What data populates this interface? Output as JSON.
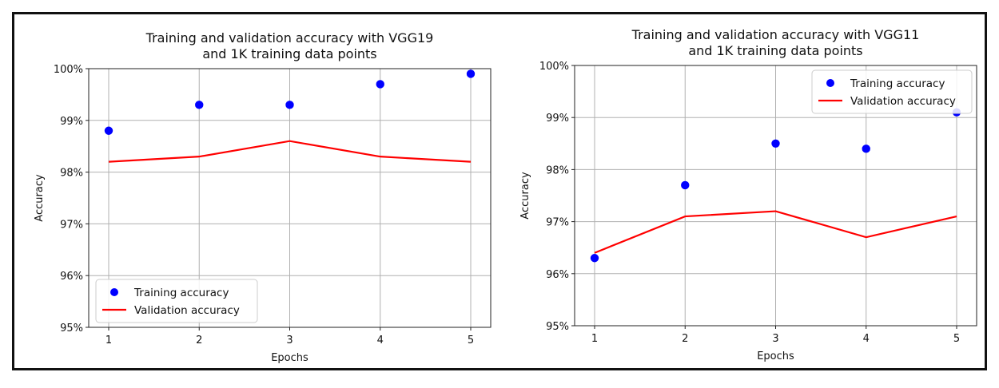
{
  "chart_data": [
    {
      "type": "line",
      "title": "Training and validation accuracy with VGG19\nand 1K training data points",
      "xlabel": "Epochs",
      "ylabel": "Accuracy",
      "x": [
        1,
        2,
        3,
        4,
        5
      ],
      "xticks": [
        "1",
        "2",
        "3",
        "4",
        "5"
      ],
      "ylim": [
        95,
        100
      ],
      "yticks": [
        "95%",
        "96%",
        "97%",
        "98%",
        "99%",
        "100%"
      ],
      "grid": true,
      "legend_position": "lower-left",
      "series": [
        {
          "name": "Training accuracy",
          "style": "scatter",
          "color": "#0000ff",
          "values": [
            98.8,
            99.3,
            99.3,
            99.7,
            99.9
          ]
        },
        {
          "name": "Validation accuracy",
          "style": "line",
          "color": "#ff0000",
          "values": [
            98.2,
            98.3,
            98.6,
            98.3,
            98.2
          ]
        }
      ]
    },
    {
      "type": "line",
      "title": "Training and validation accuracy with VGG11\nand 1K training data points",
      "xlabel": "Epochs",
      "ylabel": "Accuracy",
      "x": [
        1,
        2,
        3,
        4,
        5
      ],
      "xticks": [
        "1",
        "2",
        "3",
        "4",
        "5"
      ],
      "ylim": [
        95,
        100
      ],
      "yticks": [
        "95%",
        "96%",
        "97%",
        "98%",
        "99%",
        "100%"
      ],
      "grid": true,
      "legend_position": "upper-right",
      "series": [
        {
          "name": "Training accuracy",
          "style": "scatter",
          "color": "#0000ff",
          "values": [
            96.3,
            97.7,
            98.5,
            98.4,
            99.1
          ]
        },
        {
          "name": "Validation accuracy",
          "style": "line",
          "color": "#ff0000",
          "values": [
            96.4,
            97.1,
            97.2,
            96.7,
            97.1
          ]
        }
      ]
    }
  ]
}
